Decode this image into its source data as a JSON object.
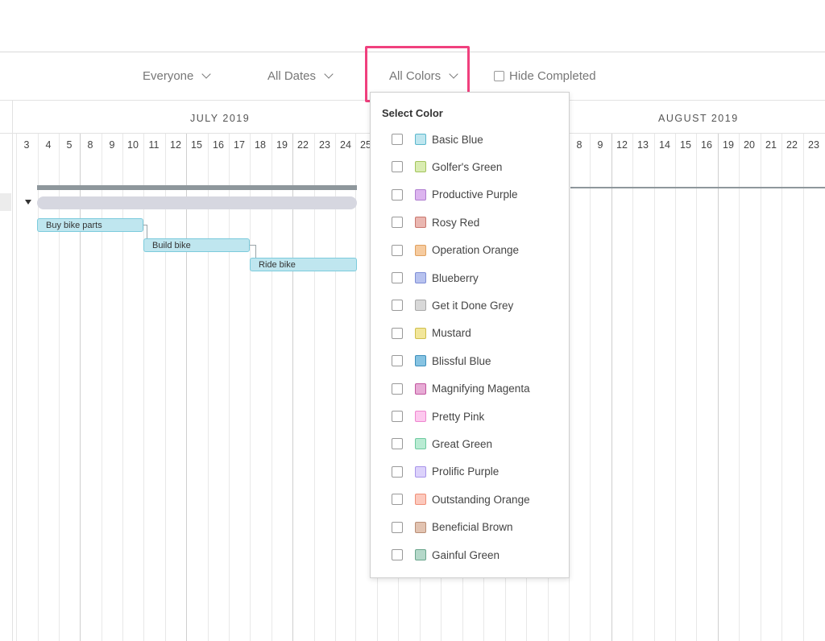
{
  "filters": {
    "people": "Everyone",
    "dates": "All Dates",
    "colors": "All Colors",
    "hide_completed": "Hide Completed"
  },
  "timeline": {
    "months": [
      "JULY 2019",
      "AUGUST 2019"
    ],
    "days_left": [
      "3",
      "4",
      "5",
      "8",
      "9",
      "10",
      "11",
      "12",
      "15",
      "16",
      "17",
      "18",
      "19",
      "22",
      "23",
      "24",
      "25"
    ],
    "days_right": [
      "8",
      "9",
      "12",
      "13",
      "14",
      "15",
      "16",
      "19",
      "20",
      "21",
      "22",
      "23"
    ]
  },
  "tasks": [
    {
      "name": "Buy bike parts"
    },
    {
      "name": "Build bike"
    },
    {
      "name": "Ride bike"
    }
  ],
  "color_menu": {
    "title": "Select Color",
    "options": [
      {
        "label": "Basic Blue",
        "fill": "#bfe6ef",
        "border": "#5bb7cc"
      },
      {
        "label": "Golfer's Green",
        "fill": "#d9ecb1",
        "border": "#a3c45c"
      },
      {
        "label": "Productive Purple",
        "fill": "#dcb4ef",
        "border": "#b07ed0"
      },
      {
        "label": "Rosy Red",
        "fill": "#eab7b1",
        "border": "#c9776e"
      },
      {
        "label": "Operation Orange",
        "fill": "#f6cb9f",
        "border": "#e0a160"
      },
      {
        "label": "Blueberry",
        "fill": "#b7c2ef",
        "border": "#7f8ed6"
      },
      {
        "label": "Get it Done Grey",
        "fill": "#d8d8d8",
        "border": "#a8a8a8"
      },
      {
        "label": "Mustard",
        "fill": "#f2e69a",
        "border": "#cfbf4c"
      },
      {
        "label": "Blissful Blue",
        "fill": "#86c3e2",
        "border": "#3e8fbb"
      },
      {
        "label": "Magnifying Magenta",
        "fill": "#e7abd5",
        "border": "#c2569f"
      },
      {
        "label": "Pretty Pink",
        "fill": "#fdc8ee",
        "border": "#ee86cf"
      },
      {
        "label": "Great Green",
        "fill": "#b9ebd3",
        "border": "#6fcaa0"
      },
      {
        "label": "Prolific Purple",
        "fill": "#dcd2fb",
        "border": "#a895ea"
      },
      {
        "label": "Outstanding Orange",
        "fill": "#fcc9bd",
        "border": "#ef8f78"
      },
      {
        "label": "Beneficial Brown",
        "fill": "#e2c3b1",
        "border": "#b98e76"
      },
      {
        "label": "Gainful Green",
        "fill": "#b4d8c9",
        "border": "#6aa58c"
      }
    ]
  }
}
